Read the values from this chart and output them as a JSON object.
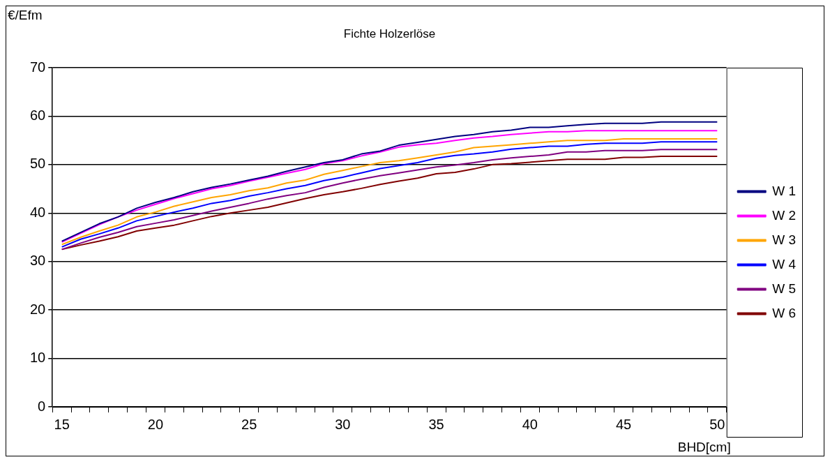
{
  "chart_data": {
    "type": "line",
    "title": "Fichte Holzerlöse",
    "xlabel": "BHD[cm]",
    "ylabel": "€/Efm",
    "categories": [
      "15",
      null,
      null,
      null,
      null,
      "20",
      null,
      null,
      null,
      null,
      "25",
      null,
      null,
      null,
      null,
      "30",
      null,
      null,
      null,
      null,
      "35",
      null,
      null,
      null,
      null,
      "40",
      null,
      null,
      null,
      null,
      "45",
      null,
      null,
      null,
      null,
      "50"
    ],
    "ylim": [
      0,
      70
    ],
    "yticks": [
      0,
      10,
      20,
      30,
      40,
      50,
      60,
      70
    ],
    "grid": "y",
    "legend": "right",
    "marker": "none",
    "line_style": "solid",
    "series": [
      {
        "name": "W 1",
        "color": "#000080",
        "values": [
          34.2,
          36,
          37.8,
          39.2,
          41,
          42.2,
          43.2,
          44.4,
          45.3,
          46,
          46.8,
          47.6,
          48.6,
          49.5,
          50.4,
          51,
          52.2,
          52.8,
          54,
          54.6,
          55.2,
          55.8,
          56.2,
          56.8,
          57.1,
          57.7,
          57.7,
          58,
          58.3,
          58.5,
          58.5,
          58.5,
          58.8,
          58.8,
          58.8,
          58.8
        ]
      },
      {
        "name": "W 2",
        "color": "#ff00ff",
        "values": [
          34,
          35.8,
          37.6,
          39.2,
          40.6,
          41.8,
          43,
          44,
          45,
          45.7,
          46.6,
          47.4,
          48.2,
          49,
          50.2,
          50.8,
          51.8,
          52.6,
          53.6,
          54.1,
          54.4,
          55,
          55.5,
          55.8,
          56.2,
          56.5,
          56.8,
          56.8,
          57,
          57,
          57,
          57,
          57,
          57,
          57,
          57
        ]
      },
      {
        "name": "W 3",
        "color": "#ffa500",
        "values": [
          33.5,
          35,
          36.3,
          37.5,
          39.2,
          40.2,
          41.4,
          42.3,
          43.2,
          43.8,
          44.6,
          45.2,
          46.2,
          46.8,
          48,
          48.8,
          49.6,
          50.4,
          50.8,
          51.4,
          52,
          52.6,
          53.5,
          53.8,
          54.1,
          54.4,
          54.7,
          55,
          55,
          55,
          55.3,
          55.3,
          55.3,
          55.3,
          55.3,
          55.3
        ]
      },
      {
        "name": "W 4",
        "color": "#0000ff",
        "values": [
          33,
          34.6,
          35.7,
          36.9,
          38.4,
          39.3,
          40.2,
          41,
          42,
          42.6,
          43.5,
          44.2,
          45,
          45.7,
          46.7,
          47.4,
          48.3,
          49.2,
          49.8,
          50.4,
          51.3,
          51.9,
          52.2,
          52.6,
          53.2,
          53.5,
          53.8,
          53.8,
          54.2,
          54.4,
          54.4,
          54.4,
          54.7,
          54.7,
          54.7,
          54.7
        ]
      },
      {
        "name": "W 5",
        "color": "#800080",
        "values": [
          32.5,
          33.8,
          35,
          36,
          37.2,
          37.9,
          38.6,
          39.5,
          40.4,
          41.2,
          42,
          42.9,
          43.6,
          44.2,
          45.3,
          46.2,
          47,
          47.7,
          48.3,
          48.9,
          49.5,
          49.9,
          50.4,
          51,
          51.4,
          51.7,
          52,
          52.6,
          52.6,
          52.9,
          52.9,
          52.9,
          53.1,
          53.1,
          53.1,
          53.1
        ]
      },
      {
        "name": "W 6",
        "color": "#800000",
        "values": [
          32.5,
          33.4,
          34.2,
          35.1,
          36.3,
          36.9,
          37.5,
          38.4,
          39.3,
          40,
          40.6,
          41.2,
          42.1,
          43,
          43.8,
          44.4,
          45.1,
          45.9,
          46.6,
          47.2,
          48.1,
          48.4,
          49.1,
          50,
          50.2,
          50.5,
          50.8,
          51.1,
          51.1,
          51.1,
          51.5,
          51.5,
          51.7,
          51.7,
          51.7,
          51.7
        ]
      }
    ]
  }
}
